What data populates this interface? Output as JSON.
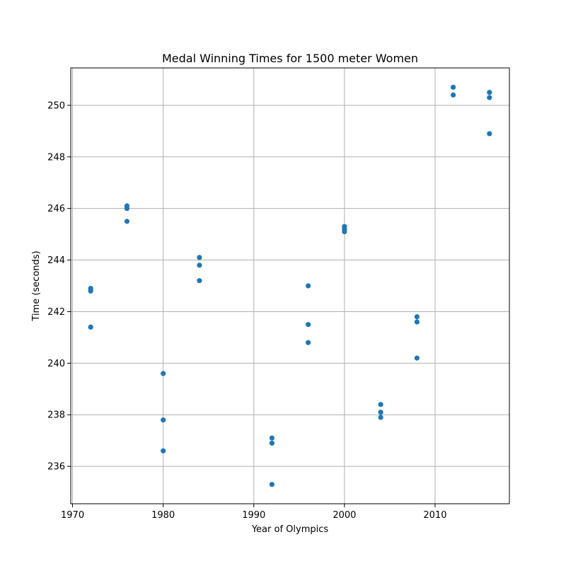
{
  "chart_data": {
    "type": "scatter",
    "title": "Medal Winning Times for 1500 meter Women",
    "xlabel": "Year of Olympics",
    "ylabel": "Time (seconds)",
    "xlim": [
      1969.8,
      2018.2
    ],
    "ylim": [
      234.55,
      251.45
    ],
    "xticks": [
      1970,
      1980,
      1990,
      2000,
      2010
    ],
    "yticks": [
      236,
      238,
      240,
      242,
      244,
      246,
      248,
      250
    ],
    "grid": true,
    "point_color": "#1f77b4",
    "points": [
      {
        "x": 1972,
        "y": 242.9
      },
      {
        "x": 1972,
        "y": 242.8
      },
      {
        "x": 1972,
        "y": 241.4
      },
      {
        "x": 1976,
        "y": 246.1
      },
      {
        "x": 1976,
        "y": 246.0
      },
      {
        "x": 1976,
        "y": 245.5
      },
      {
        "x": 1980,
        "y": 239.6
      },
      {
        "x": 1980,
        "y": 237.8
      },
      {
        "x": 1980,
        "y": 236.6
      },
      {
        "x": 1984,
        "y": 244.1
      },
      {
        "x": 1984,
        "y": 243.8
      },
      {
        "x": 1984,
        "y": 243.2
      },
      {
        "x": 1992,
        "y": 237.1
      },
      {
        "x": 1992,
        "y": 236.9
      },
      {
        "x": 1992,
        "y": 235.3
      },
      {
        "x": 1996,
        "y": 243.0
      },
      {
        "x": 1996,
        "y": 241.5
      },
      {
        "x": 1996,
        "y": 240.8
      },
      {
        "x": 2000,
        "y": 245.3
      },
      {
        "x": 2000,
        "y": 245.2
      },
      {
        "x": 2000,
        "y": 245.1
      },
      {
        "x": 2004,
        "y": 238.4
      },
      {
        "x": 2004,
        "y": 238.1
      },
      {
        "x": 2004,
        "y": 237.9
      },
      {
        "x": 2008,
        "y": 241.8
      },
      {
        "x": 2008,
        "y": 241.6
      },
      {
        "x": 2008,
        "y": 240.2
      },
      {
        "x": 2012,
        "y": 250.7
      },
      {
        "x": 2012,
        "y": 250.4
      },
      {
        "x": 2016,
        "y": 250.5
      },
      {
        "x": 2016,
        "y": 250.3
      },
      {
        "x": 2016,
        "y": 248.9
      }
    ]
  }
}
